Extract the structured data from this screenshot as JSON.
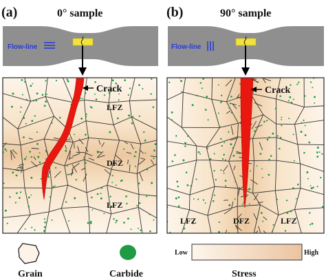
{
  "panel_a": {
    "label": "(a)",
    "title": "0° sample",
    "flow_line": "Flow-line",
    "zones": {
      "top": "LFZ",
      "middle": "DFZ",
      "bottom": "LFZ"
    },
    "crack": "Crack"
  },
  "panel_b": {
    "label": "(b)",
    "title": "90° sample",
    "flow_line": "Flow-line",
    "zones": {
      "left": "LFZ",
      "middle": "DFZ",
      "right": "LFZ"
    },
    "crack": "Crack"
  },
  "legend": {
    "grain": "Grain",
    "carbide": "Carbide",
    "stress": "Stress",
    "low": "Low",
    "high": "High"
  },
  "colors": {
    "specimen": "#8f8f8f",
    "gauge": "#f2e33a",
    "crack": "#e8170f",
    "carbide": "#1f9a45",
    "grain_light": "#fdf3e6",
    "grain_dark": "#ecc8a0",
    "flow_line": "#2a3bd6"
  }
}
